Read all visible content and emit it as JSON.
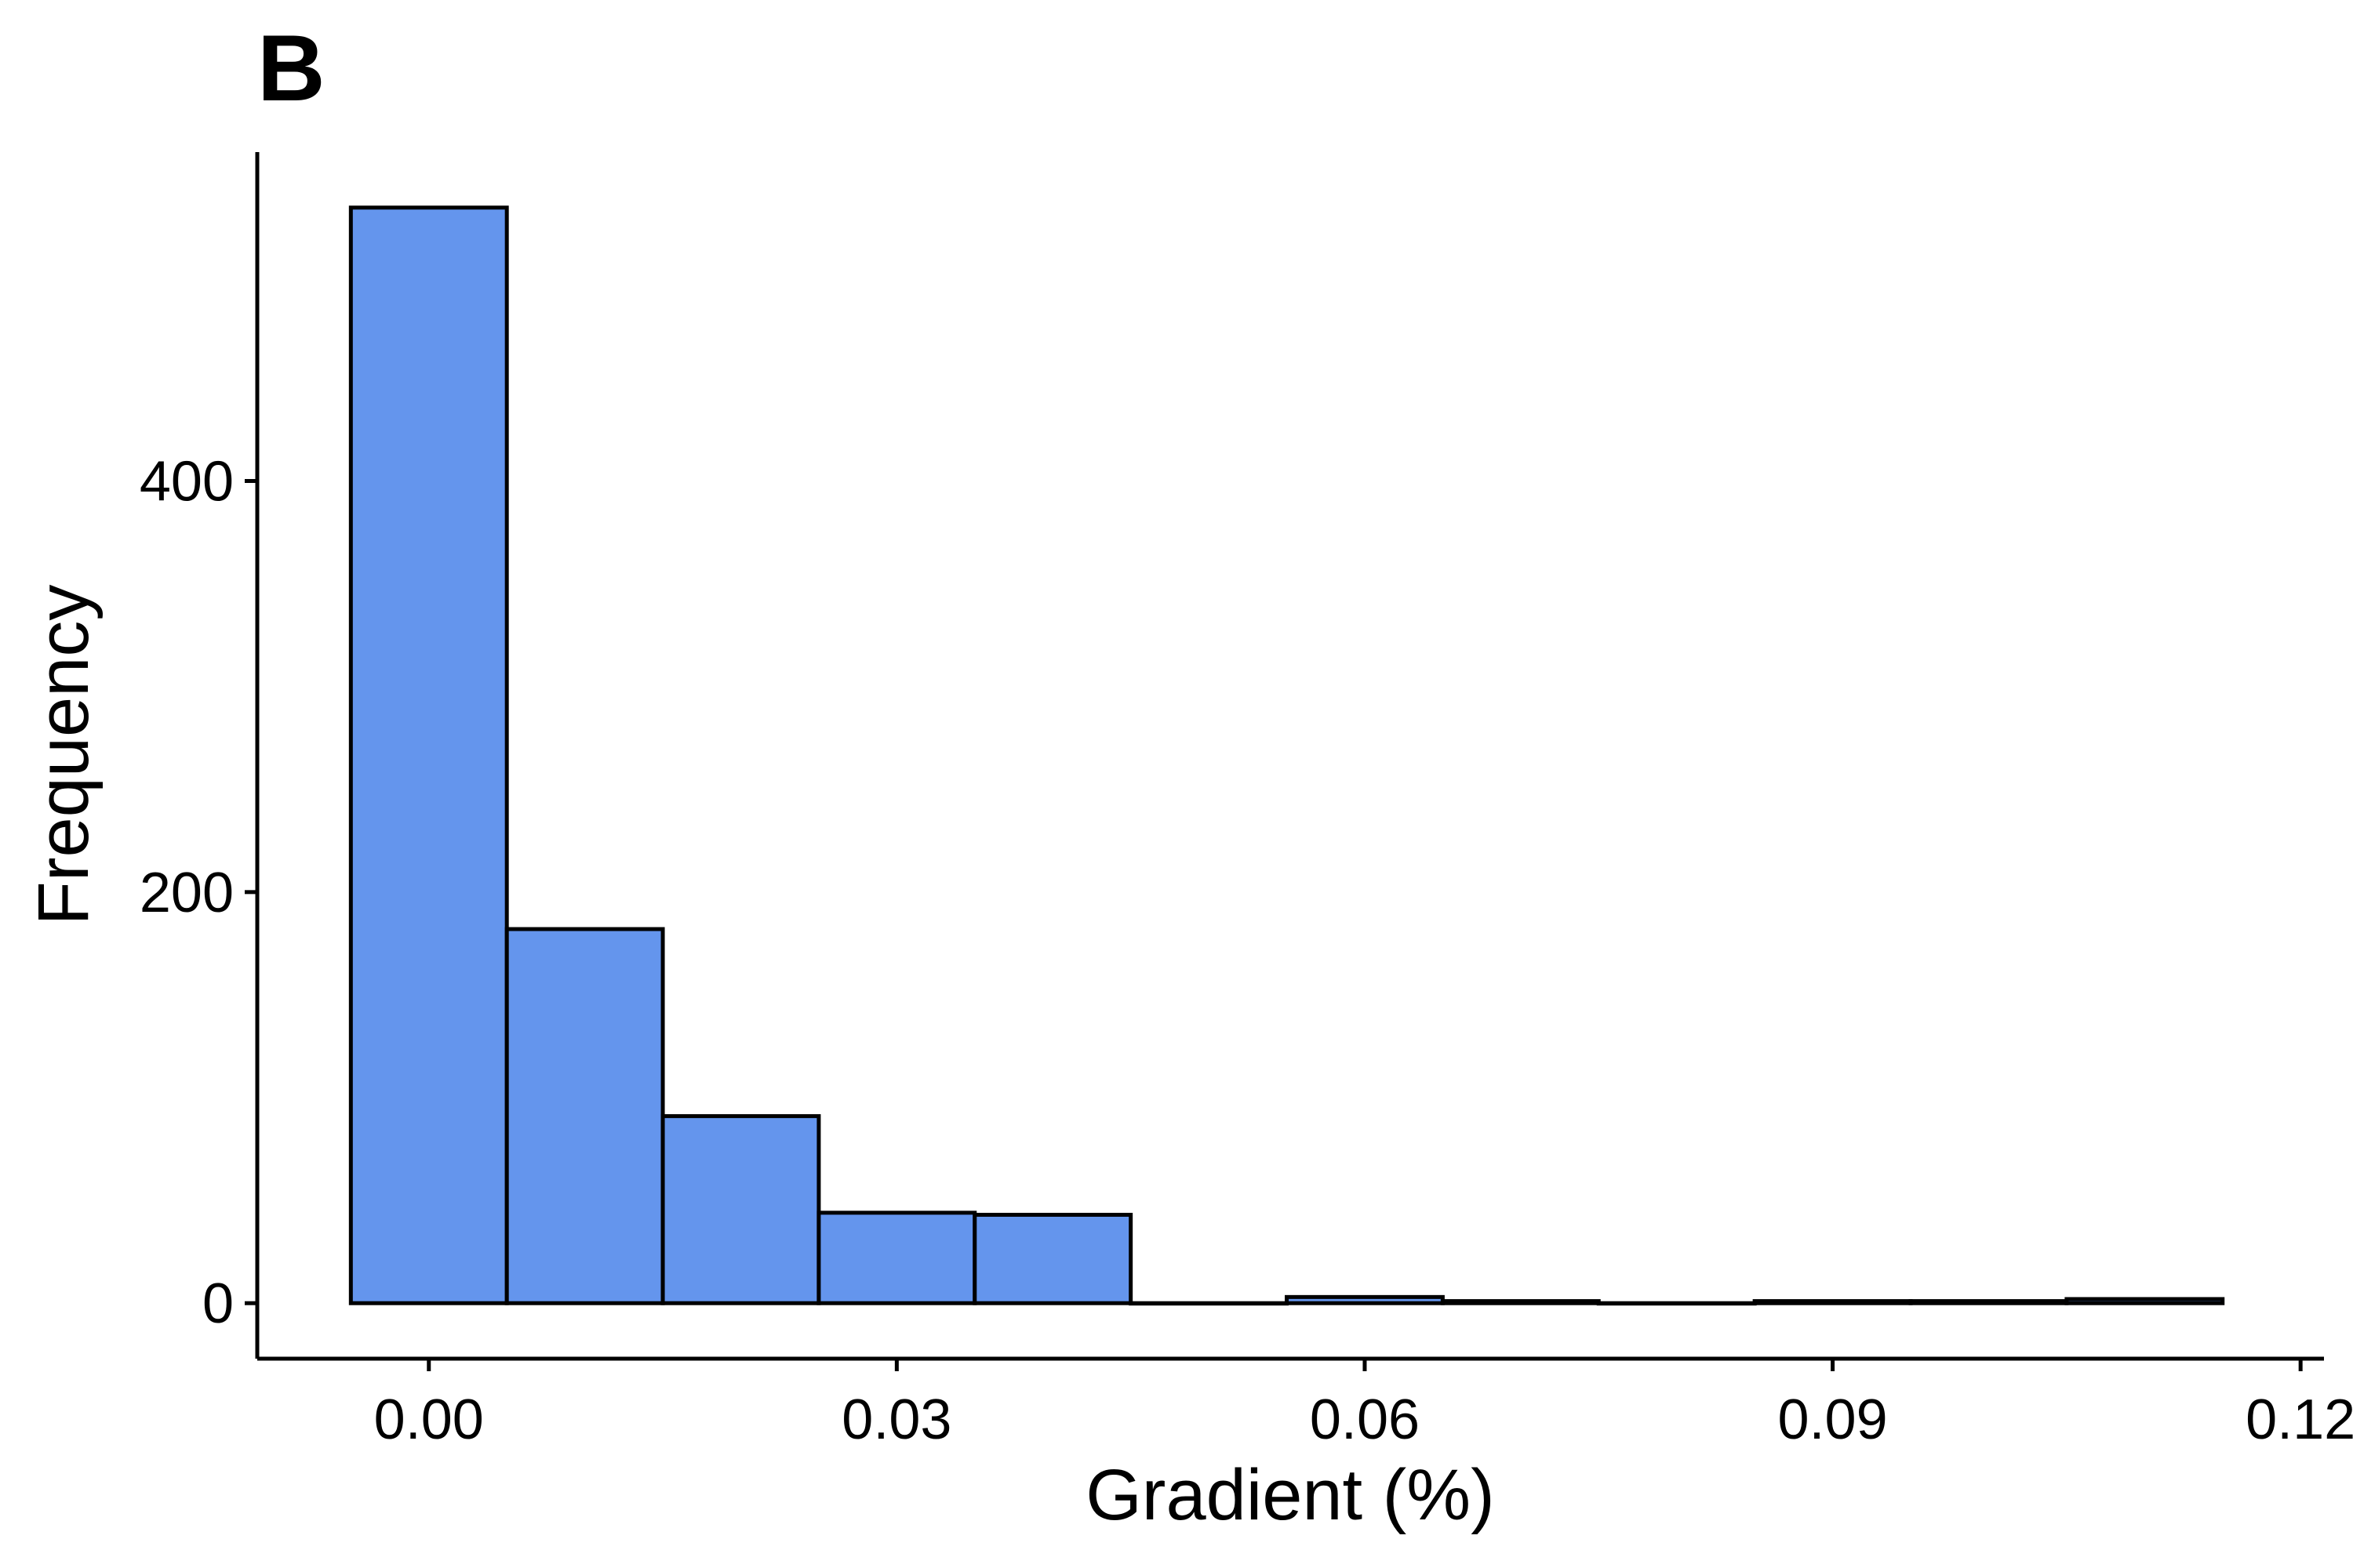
{
  "panel_label": "B",
  "chart_data": {
    "type": "bar",
    "title": "",
    "xlabel": "Gradient (%)",
    "ylabel": "Frequency",
    "bins": [
      {
        "start": -0.005,
        "end": 0.005,
        "count": 533
      },
      {
        "start": 0.005,
        "end": 0.015,
        "count": 182
      },
      {
        "start": 0.015,
        "end": 0.025,
        "count": 91
      },
      {
        "start": 0.025,
        "end": 0.035,
        "count": 44
      },
      {
        "start": 0.035,
        "end": 0.045,
        "count": 43
      },
      {
        "start": 0.045,
        "end": 0.055,
        "count": 0
      },
      {
        "start": 0.055,
        "end": 0.065,
        "count": 3
      },
      {
        "start": 0.065,
        "end": 0.075,
        "count": 1
      },
      {
        "start": 0.075,
        "end": 0.085,
        "count": 0
      },
      {
        "start": 0.085,
        "end": 0.095,
        "count": 1
      },
      {
        "start": 0.095,
        "end": 0.105,
        "count": 1
      },
      {
        "start": 0.105,
        "end": 0.115,
        "count": 2
      }
    ],
    "xlim": [
      -0.011,
      0.1215
    ],
    "ylim": [
      -27,
      560
    ],
    "x_ticks": [
      0.0,
      0.03,
      0.06,
      0.09,
      0.12
    ],
    "x_tick_labels": [
      "0.00",
      "0.03",
      "0.06",
      "0.09",
      "0.12"
    ],
    "y_ticks": [
      0,
      200,
      400
    ],
    "y_tick_labels": [
      "0",
      "200",
      "400"
    ],
    "bar_fill": "#6495ED",
    "bar_stroke": "#000000",
    "grid": false,
    "legend": "none"
  }
}
